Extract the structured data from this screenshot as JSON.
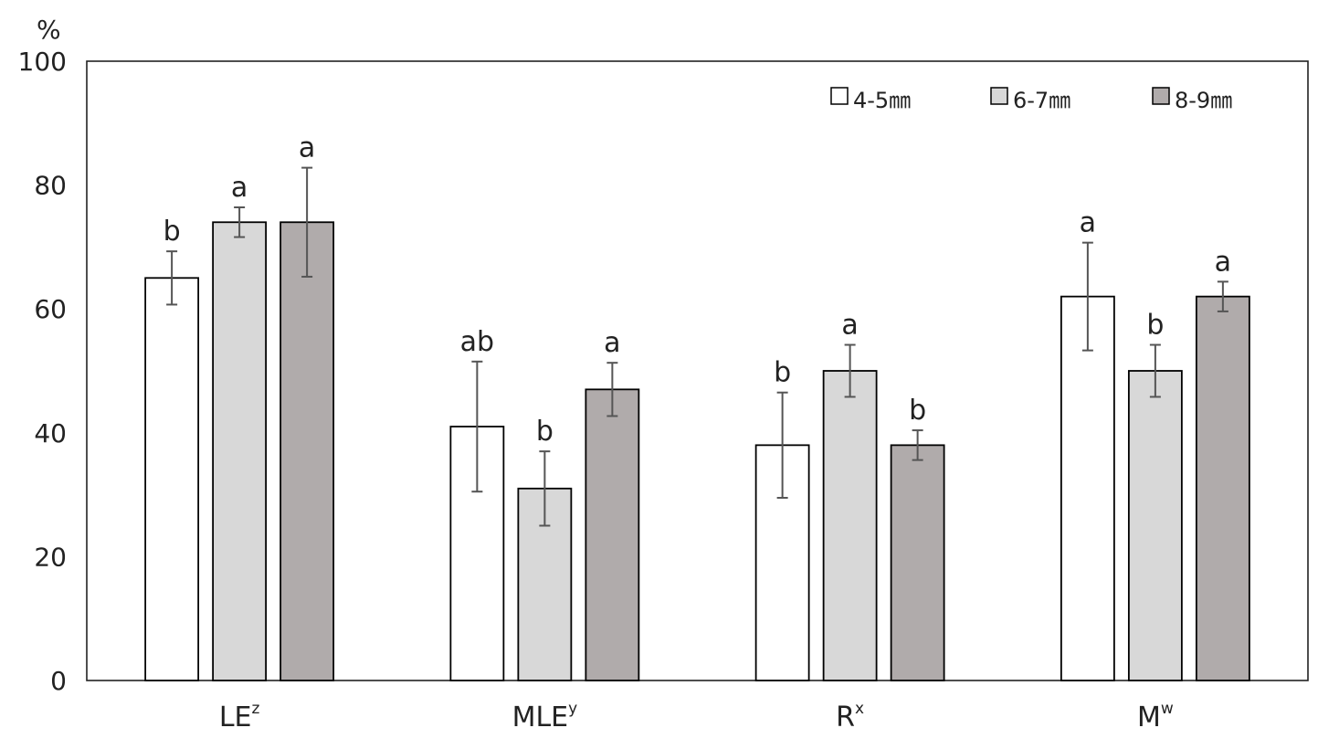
{
  "chart_data": {
    "type": "bar",
    "unit_label": "%",
    "categories": [
      {
        "main": "LE",
        "sup": "z"
      },
      {
        "main": "MLE",
        "sup": "y"
      },
      {
        "main": "R",
        "sup": "x"
      },
      {
        "main": "M",
        "sup": "w"
      }
    ],
    "series": [
      {
        "name": "4-5㎜",
        "color": "#ffffff",
        "values": [
          65,
          41,
          38,
          62
        ],
        "errors": [
          4.3,
          10.5,
          8.5,
          8.7
        ],
        "letters": [
          "b",
          "ab",
          "b",
          "a"
        ]
      },
      {
        "name": "6-7㎜",
        "color": "#d8d8d8",
        "values": [
          74,
          31,
          50,
          50
        ],
        "errors": [
          2.4,
          6.0,
          4.2,
          4.2
        ],
        "letters": [
          "a",
          "b",
          "a",
          "b"
        ]
      },
      {
        "name": "8-9㎜",
        "color": "#b0abab",
        "values": [
          74,
          47,
          38,
          62
        ],
        "errors": [
          8.8,
          4.3,
          2.4,
          2.4
        ],
        "letters": [
          "a",
          "a",
          "b",
          "a"
        ]
      }
    ],
    "y_ticks": [
      0,
      20,
      40,
      60,
      80,
      100
    ],
    "ylim": [
      0,
      100
    ],
    "grid": false,
    "legend_position": "top-right",
    "bar_stroke": "#000000",
    "error_bar_color": "#555555"
  }
}
